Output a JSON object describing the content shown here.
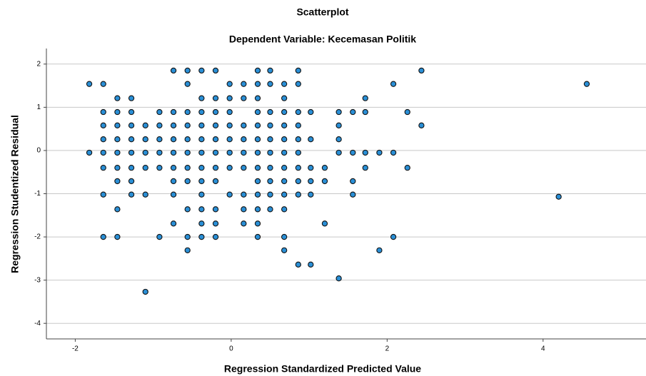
{
  "chart_data": {
    "type": "scatter",
    "title": "Scatterplot",
    "subtitle": "Dependent Variable: Kecemasan Politik",
    "x_label": "Regression Standardized Predicted Value",
    "y_label": "Regression Studentized Residual",
    "xlim": [
      -2.37,
      5.32
    ],
    "ylim": [
      -4.36,
      2.36
    ],
    "xticks": [
      -2,
      0,
      2,
      4
    ],
    "yticks": [
      -4,
      -3,
      -2,
      -1,
      0,
      1,
      2
    ],
    "grid": true,
    "color": "#2a8fd6",
    "x": [
      -1.82,
      -1.82,
      -1.64,
      -1.64,
      -1.64,
      -1.64,
      -1.64,
      -1.64,
      -1.64,
      -1.64,
      -1.46,
      -1.46,
      -1.46,
      -1.46,
      -1.46,
      -1.46,
      -1.46,
      -1.46,
      -1.46,
      -1.28,
      -1.28,
      -1.28,
      -1.28,
      -1.28,
      -1.28,
      -1.28,
      -1.28,
      -1.1,
      -1.1,
      -1.1,
      -1.1,
      -1.1,
      -1.1,
      -0.92,
      -0.92,
      -0.92,
      -0.92,
      -0.92,
      -0.92,
      -0.74,
      -0.74,
      -0.74,
      -0.74,
      -0.74,
      -0.74,
      -0.74,
      -0.74,
      -0.74,
      -0.56,
      -0.56,
      -0.56,
      -0.56,
      -0.56,
      -0.56,
      -0.56,
      -0.56,
      -0.56,
      -0.56,
      -0.56,
      -0.38,
      -0.38,
      -0.38,
      -0.38,
      -0.38,
      -0.38,
      -0.38,
      -0.38,
      -0.38,
      -0.38,
      -0.38,
      -0.38,
      -0.2,
      -0.2,
      -0.2,
      -0.2,
      -0.2,
      -0.2,
      -0.2,
      -0.2,
      -0.2,
      -0.2,
      -0.2,
      -0.02,
      -0.02,
      -0.02,
      -0.02,
      -0.02,
      -0.02,
      -0.02,
      -0.02,
      0.16,
      0.16,
      0.16,
      0.16,
      0.16,
      0.16,
      0.16,
      0.16,
      0.16,
      0.34,
      0.34,
      0.34,
      0.34,
      0.34,
      0.34,
      0.34,
      0.34,
      0.34,
      0.34,
      0.34,
      0.34,
      0.34,
      0.5,
      0.5,
      0.5,
      0.5,
      0.5,
      0.5,
      0.5,
      0.5,
      0.5,
      0.5,
      0.68,
      0.68,
      0.68,
      0.68,
      0.68,
      0.68,
      0.68,
      0.68,
      0.68,
      0.68,
      0.68,
      0.68,
      0.86,
      0.86,
      0.86,
      0.86,
      0.86,
      0.86,
      0.86,
      0.86,
      0.86,
      0.86,
      1.02,
      1.02,
      1.02,
      1.02,
      1.02,
      1.02,
      1.2,
      1.2,
      1.2,
      1.38,
      1.38,
      1.38,
      1.38,
      1.38,
      1.56,
      1.56,
      1.56,
      1.56,
      1.72,
      1.72,
      1.72,
      1.72,
      1.9,
      1.9,
      2.08,
      2.08,
      2.08,
      2.26,
      2.26,
      2.44,
      2.44,
      4.2,
      4.56
    ],
    "y": [
      1.54,
      -0.05,
      1.54,
      0.89,
      0.58,
      0.26,
      -0.05,
      -0.4,
      -1.02,
      -2,
      1.21,
      0.89,
      0.58,
      0.26,
      -0.05,
      -0.4,
      -0.71,
      -1.36,
      -2,
      1.21,
      0.89,
      0.58,
      0.26,
      -0.05,
      -0.4,
      -0.71,
      -1.02,
      0.58,
      0.26,
      -0.05,
      -0.4,
      -1.02,
      -3.27,
      0.89,
      0.58,
      0.26,
      -0.05,
      -0.4,
      -2,
      1.85,
      0.89,
      0.58,
      0.26,
      -0.05,
      -0.4,
      -0.71,
      -1.02,
      -1.69,
      1.85,
      1.54,
      0.89,
      0.58,
      0.26,
      -0.05,
      -0.4,
      -0.71,
      -1.36,
      -2,
      -2.31,
      1.85,
      1.21,
      0.89,
      0.58,
      0.26,
      -0.05,
      -0.4,
      -0.71,
      -1.02,
      -1.36,
      -1.69,
      -2,
      1.85,
      1.21,
      0.89,
      0.58,
      0.26,
      -0.05,
      -0.4,
      -0.71,
      -1.36,
      -1.69,
      -2,
      1.54,
      1.21,
      0.89,
      0.58,
      0.26,
      -0.05,
      -0.4,
      -1.02,
      1.54,
      1.21,
      0.58,
      0.26,
      -0.05,
      -0.4,
      -1.02,
      -1.36,
      -1.69,
      1.85,
      1.54,
      1.21,
      0.89,
      0.58,
      0.26,
      -0.05,
      -0.4,
      -0.71,
      -1.02,
      -1.36,
      -1.69,
      -2,
      1.85,
      1.54,
      0.89,
      0.58,
      0.26,
      -0.05,
      -0.4,
      -0.71,
      -1.02,
      -1.36,
      1.54,
      1.21,
      0.89,
      0.58,
      0.26,
      -0.05,
      -0.4,
      -0.71,
      -1.02,
      -1.36,
      -2,
      -2.31,
      1.85,
      1.54,
      0.89,
      0.58,
      0.26,
      -0.05,
      -0.4,
      -0.71,
      -1.02,
      -2.64,
      0.89,
      0.26,
      -0.4,
      -0.71,
      -1.02,
      -2.64,
      -0.4,
      -0.71,
      -1.69,
      0.89,
      0.58,
      0.26,
      -0.05,
      -2.96,
      0.89,
      -0.05,
      -0.71,
      -1.02,
      1.21,
      0.89,
      -0.05,
      -0.4,
      -0.05,
      -2.31,
      1.54,
      -0.05,
      -2,
      0.89,
      -0.4,
      1.85,
      0.58,
      -1.07,
      1.54
    ]
  }
}
